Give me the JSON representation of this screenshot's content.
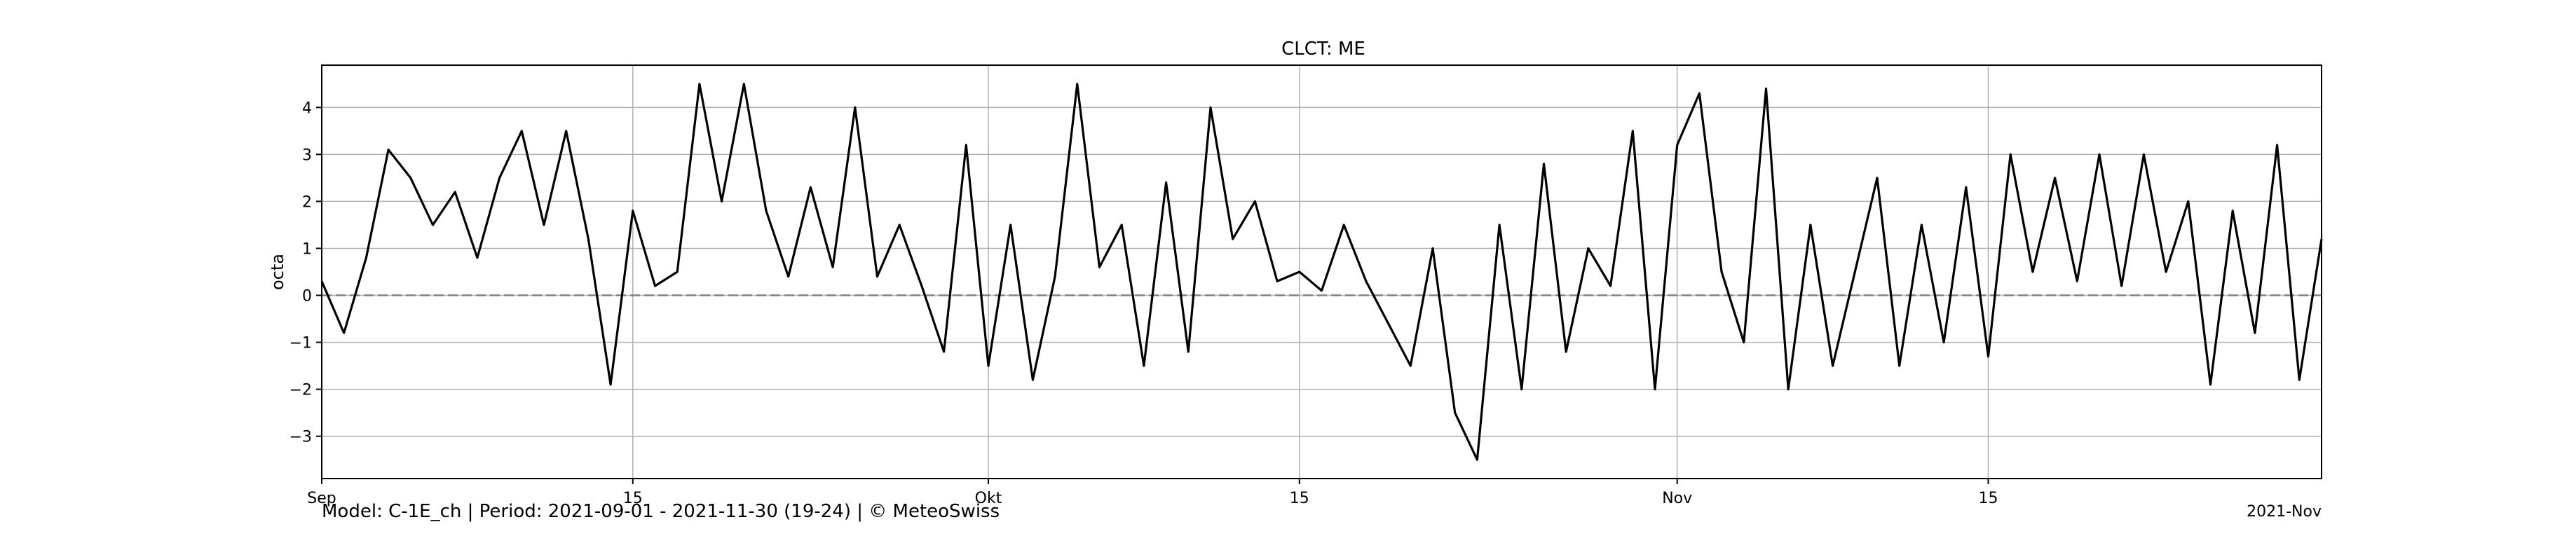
{
  "chart_data": {
    "type": "line",
    "title": "CLCT: ME",
    "ylabel": "octa",
    "xlabel": "",
    "x_range": [
      "2021-09-01",
      "2021-11-30"
    ],
    "ylim": [
      -3.9,
      4.9
    ],
    "yticks": [
      -3,
      -2,
      -1,
      0,
      1,
      2,
      3,
      4
    ],
    "xticks": [
      {
        "date": "2021-09-01",
        "label": "Sep"
      },
      {
        "date": "2021-09-15",
        "label": "15"
      },
      {
        "date": "2021-10-01",
        "label": "Okt"
      },
      {
        "date": "2021-10-15",
        "label": "15"
      },
      {
        "date": "2021-11-01",
        "label": "Nov"
      },
      {
        "date": "2021-11-15",
        "label": "15"
      }
    ],
    "offset_label": "2021-Nov",
    "grid": true,
    "zero_line": {
      "y": 0,
      "style": "dashed",
      "color": "#808080"
    },
    "line_color": "#000000",
    "series": [
      {
        "x": [
          "2021-09-01",
          "2021-09-02",
          "2021-09-03",
          "2021-09-04",
          "2021-09-05",
          "2021-09-06",
          "2021-09-07",
          "2021-09-08",
          "2021-09-09",
          "2021-09-10",
          "2021-09-11",
          "2021-09-12",
          "2021-09-13",
          "2021-09-14",
          "2021-09-15",
          "2021-09-16",
          "2021-09-17",
          "2021-09-18",
          "2021-09-19",
          "2021-09-20",
          "2021-09-21",
          "2021-09-22",
          "2021-09-23",
          "2021-09-24",
          "2021-09-25",
          "2021-09-26",
          "2021-09-27",
          "2021-09-28",
          "2021-09-29",
          "2021-09-30",
          "2021-10-01",
          "2021-10-02",
          "2021-10-03",
          "2021-10-04",
          "2021-10-05",
          "2021-10-06",
          "2021-10-07",
          "2021-10-08",
          "2021-10-09",
          "2021-10-10",
          "2021-10-11",
          "2021-10-12",
          "2021-10-13",
          "2021-10-14",
          "2021-10-15",
          "2021-10-16",
          "2021-10-17",
          "2021-10-18",
          "2021-10-19",
          "2021-10-20",
          "2021-10-21",
          "2021-10-22",
          "2021-10-23",
          "2021-10-24",
          "2021-10-25",
          "2021-10-26",
          "2021-10-27",
          "2021-10-28",
          "2021-10-29",
          "2021-10-30",
          "2021-10-31",
          "2021-11-01",
          "2021-11-02",
          "2021-11-03",
          "2021-11-04",
          "2021-11-05",
          "2021-11-06",
          "2021-11-07",
          "2021-11-08",
          "2021-11-09",
          "2021-11-10",
          "2021-11-11",
          "2021-11-12",
          "2021-11-13",
          "2021-11-14",
          "2021-11-15",
          "2021-11-16",
          "2021-11-17",
          "2021-11-18",
          "2021-11-19",
          "2021-11-20",
          "2021-11-21",
          "2021-11-22",
          "2021-11-23",
          "2021-11-24",
          "2021-11-25",
          "2021-11-26",
          "2021-11-27",
          "2021-11-28",
          "2021-11-29",
          "2021-11-30"
        ],
        "y": [
          0.3,
          -0.8,
          0.8,
          3.1,
          2.5,
          1.5,
          2.2,
          0.8,
          2.5,
          3.5,
          1.5,
          3.5,
          1.2,
          -1.9,
          1.8,
          0.2,
          0.5,
          4.5,
          2.0,
          4.5,
          1.8,
          0.4,
          2.3,
          0.6,
          4.0,
          0.4,
          1.5,
          0.2,
          -1.2,
          3.2,
          -1.5,
          1.5,
          -1.8,
          0.4,
          4.5,
          0.6,
          1.5,
          -1.5,
          2.4,
          -1.2,
          4.0,
          1.2,
          2.0,
          0.3,
          0.5,
          0.1,
          1.5,
          0.3,
          -0.6,
          -1.5,
          1.0,
          -2.5,
          -3.5,
          1.5,
          -2.0,
          2.8,
          -1.2,
          1.0,
          0.2,
          3.5,
          -2.0,
          3.2,
          4.3,
          0.5,
          -1.0,
          4.4,
          -2.0,
          1.5,
          -1.5,
          0.5,
          2.5,
          -1.5,
          1.5,
          -1.0,
          2.3,
          -1.3,
          3.0,
          0.5,
          2.5,
          0.3,
          3.0,
          0.2,
          3.0,
          0.5,
          2.0,
          -1.9,
          1.8,
          -0.8,
          3.2,
          -1.8,
          1.2
        ]
      }
    ]
  },
  "footer": {
    "text": "Model: C-1E_ch | Period: 2021-09-01 - 2021-11-30 (19-24) | © MeteoSwiss"
  }
}
